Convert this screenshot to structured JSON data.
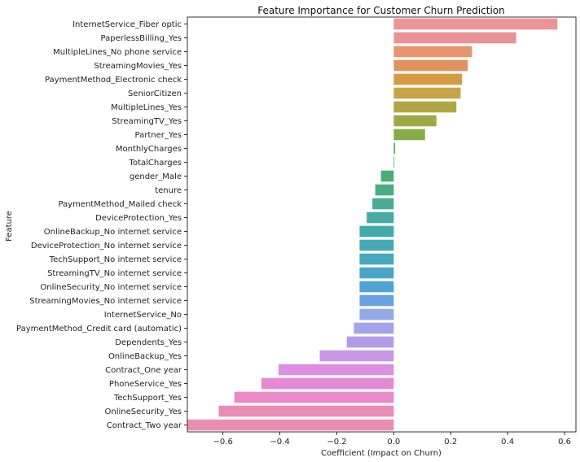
{
  "chart_data": {
    "type": "bar",
    "orientation": "horizontal",
    "title": "Feature Importance for Customer Churn Prediction",
    "xlabel": "Coefficient (Impact on Churn)",
    "ylabel": "Feature",
    "xlim": [
      -0.725,
      0.64
    ],
    "xticks": [
      -0.6,
      -0.4,
      -0.2,
      0.0,
      0.2,
      0.4,
      0.6
    ],
    "xtick_labels": [
      "−0.6",
      "−0.4",
      "−0.2",
      "0.0",
      "0.2",
      "0.4",
      "0.6"
    ],
    "grid": false,
    "categories": [
      "InternetService_Fiber optic",
      "PaperlessBilling_Yes",
      "MultipleLines_No phone service",
      "StreamingMovies_Yes",
      "PaymentMethod_Electronic check",
      "SeniorCitizen",
      "MultipleLines_Yes",
      "StreamingTV_Yes",
      "Partner_Yes",
      "MonthlyCharges",
      "TotalCharges",
      "gender_Male",
      "tenure",
      "PaymentMethod_Mailed check",
      "DeviceProtection_Yes",
      "OnlineBackup_No internet service",
      "DeviceProtection_No internet service",
      "TechSupport_No internet service",
      "StreamingTV_No internet service",
      "OnlineSecurity_No internet service",
      "StreamingMovies_No internet service",
      "InternetService_No",
      "PaymentMethod_Credit card (automatic)",
      "Dependents_Yes",
      "OnlineBackup_Yes",
      "Contract_One year",
      "PhoneService_Yes",
      "TechSupport_Yes",
      "OnlineSecurity_Yes",
      "Contract_Two year"
    ],
    "values": [
      0.575,
      0.43,
      0.275,
      0.26,
      0.24,
      0.235,
      0.22,
      0.15,
      0.11,
      0.005,
      0.001,
      -0.045,
      -0.065,
      -0.075,
      -0.095,
      -0.12,
      -0.12,
      -0.12,
      -0.12,
      -0.12,
      -0.12,
      -0.12,
      -0.14,
      -0.165,
      -0.26,
      -0.405,
      -0.465,
      -0.56,
      -0.615,
      -0.725
    ],
    "colors": [
      "#ee9499",
      "#e99396",
      "#e8956f",
      "#e0935e",
      "#d69a45",
      "#c9a447",
      "#b1a643",
      "#9ea845",
      "#86ab49",
      "#5faf50",
      "#4fb05a",
      "#4aae74",
      "#48ad85",
      "#47ac93",
      "#46aca0",
      "#44aaaa",
      "#45a9b3",
      "#47a8bd",
      "#4aa6c8",
      "#53a3d6",
      "#6aa3e2",
      "#93aae8",
      "#a5a3ea",
      "#b49bea",
      "#c897e6",
      "#dc8fe2",
      "#e589d7",
      "#e98ac8",
      "#ea8cb6",
      "#eb8fb0"
    ]
  }
}
